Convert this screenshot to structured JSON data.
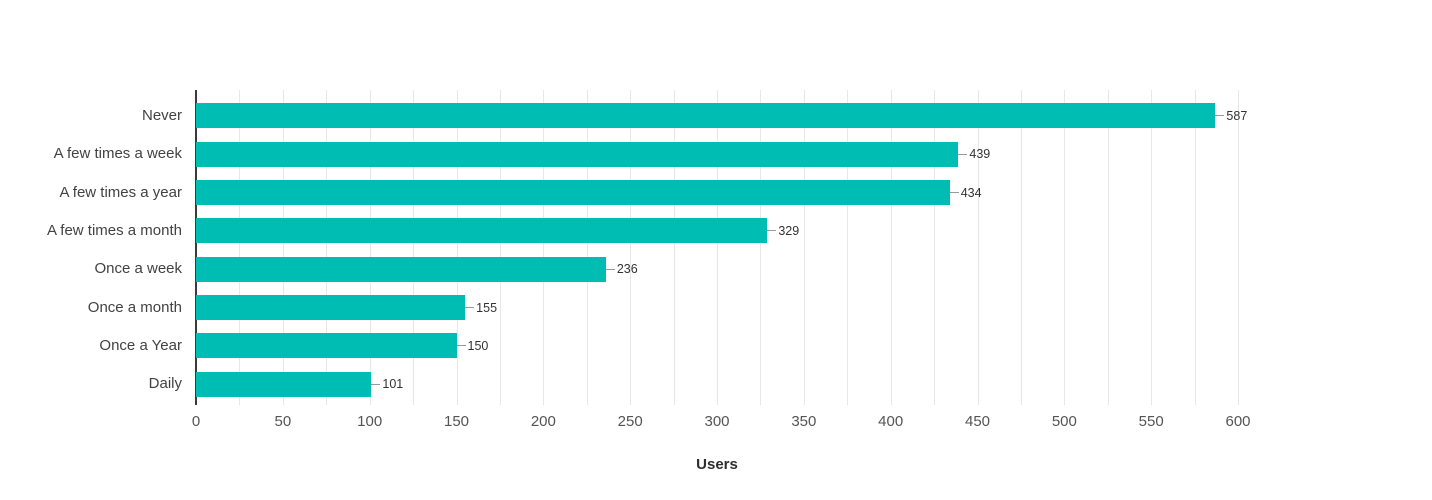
{
  "chart_data": {
    "type": "bar",
    "orientation": "horizontal",
    "title": "",
    "categories": [
      "Never",
      "A few times a week",
      "A few times a year",
      "A few times a month",
      "Once a week",
      "Once a month",
      "Once a Year",
      "Daily"
    ],
    "values": [
      587,
      439,
      434,
      329,
      236,
      155,
      150,
      101
    ],
    "value_labels": [
      "587",
      "439",
      "434",
      "329",
      "236",
      "155",
      "150",
      "101"
    ],
    "xlabel": "Users",
    "ylabel": "",
    "xlim": [
      0,
      600
    ],
    "x_ticks": [
      0,
      50,
      100,
      150,
      200,
      250,
      300,
      350,
      400,
      450,
      500,
      550,
      600
    ],
    "gridline_interval": 25,
    "grid": true,
    "legend": "none",
    "colors": {
      "bar": "#00BDB3",
      "gridline": "#E7E7E7",
      "axis_line": "#3A3A3A",
      "category_label": "#424242",
      "tick_label": "#545454",
      "value_label": "#333333",
      "value_connector": "#999999",
      "axis_title": "#2E2E2E",
      "background": "#FFFFFF"
    }
  }
}
